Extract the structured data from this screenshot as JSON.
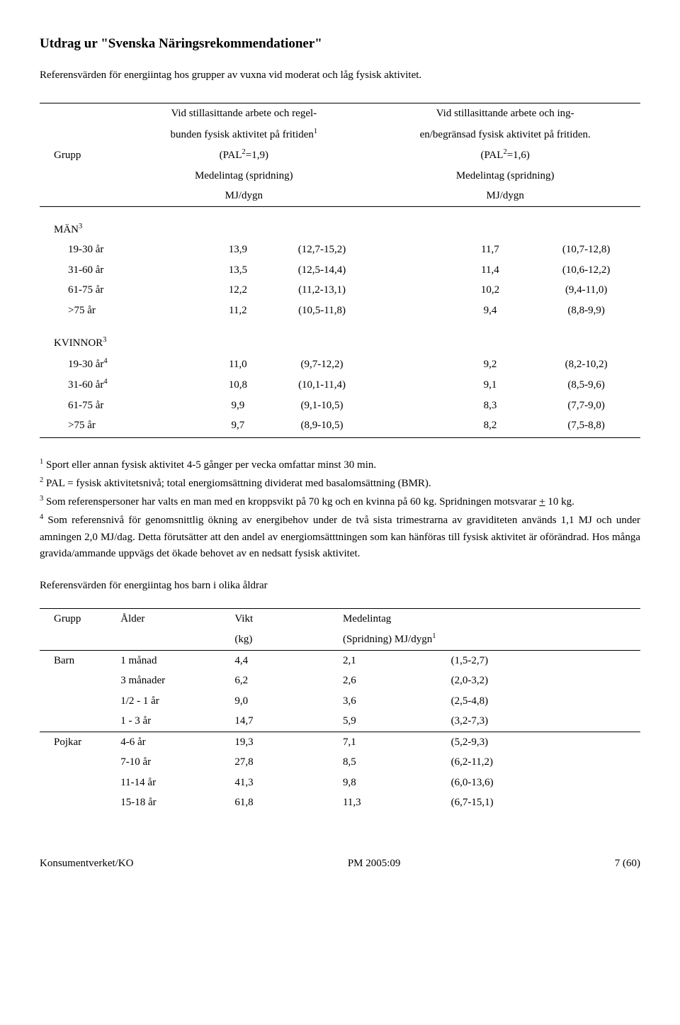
{
  "title": "Utdrag ur \"Svenska Näringsrekommendationer\"",
  "subtitle": "Referensvärden för energiintag hos grupper av vuxna vid moderat och låg fysisk aktivitet.",
  "table1": {
    "col0": "Grupp",
    "hdr1_l1": "Vid stillasittande arbete och regel-",
    "hdr1_l2": "bunden fysisk  aktivitet på fritiden",
    "hdr1_sup": "1",
    "hdr1_l3a": "(PAL",
    "hdr1_l3sup": "2",
    "hdr1_l3b": "=1,9)",
    "hdr1_l4": "Medelintag (spridning)",
    "hdr1_l5": "MJ/dygn",
    "hdr2_l1": "Vid stillasittande arbete och ing-",
    "hdr2_l2": "en/begränsad fysisk aktivitet på fritiden.",
    "hdr2_l3a": "(PAL",
    "hdr2_l3sup": "2",
    "hdr2_l3b": "=1,6)",
    "hdr2_l4": "Medelintag (spridning)",
    "hdr2_l5": "MJ/dygn",
    "men_label": "MÄN",
    "men_sup": "3",
    "men_rows": [
      {
        "age": "19-30 år",
        "v1": "13,9",
        "r1": "(12,7-15,2)",
        "v2": "11,7",
        "r2": "(10,7-12,8)"
      },
      {
        "age": "31-60 år",
        "v1": "13,5",
        "r1": "(12,5-14,4)",
        "v2": "11,4",
        "r2": "(10,6-12,2)"
      },
      {
        "age": "61-75 år",
        "v1": "12,2",
        "r1": "(11,2-13,1)",
        "v2": "10,2",
        "r2": "(9,4-11,0)"
      },
      {
        "age": ">75 år",
        "v1": "11,2",
        "r1": "(10,5-11,8)",
        "v2": "9,4",
        "r2": "(8,8-9,9)"
      }
    ],
    "women_label": "KVINNOR",
    "women_sup": "3",
    "women_rows": [
      {
        "age": "19-30 år",
        "asup": "4",
        "v1": "11,0",
        "r1": "(9,7-12,2)",
        "v2": "9,2",
        "r2": "(8,2-10,2)"
      },
      {
        "age": "31-60 år",
        "asup": "4",
        "v1": "10,8",
        "r1": "(10,1-11,4)",
        "v2": "9,1",
        "r2": "(8,5-9,6)"
      },
      {
        "age": "61-75 år",
        "asup": "",
        "v1": "9,9",
        "r1": "(9,1-10,5)",
        "v2": "8,3",
        "r2": "(7,7-9,0)"
      },
      {
        "age": ">75 år",
        "asup": "",
        "v1": "9,7",
        "r1": "(8,9-10,5)",
        "v2": "8,2",
        "r2": "(7,5-8,8)"
      }
    ]
  },
  "notes": {
    "n1sup": "1",
    "n1": " Sport eller annan fysisk aktivitet 4-5 gånger per vecka omfattar minst 30 min.",
    "n2sup": "2",
    "n2": " PAL = fysisk aktivitetsnivå; total energiomsättning dividerat med basalomsättning (BMR).",
    "n3sup": "3",
    "n3": " Som referenspersoner har valts en man med en kroppsvikt på 70 kg och en kvinna på 60 kg. Spridningen motsvarar ",
    "n3pm": "+",
    "n3b": " 10 kg.",
    "n4sup": "4",
    "n4": " Som referensnivå för genomsnittlig ökning av energibehov under de två sista trimestrarna av graviditeten används 1,1 MJ och under amningen 2,0 MJ/dag. Detta förutsätter att den andel av energiomsätttningen som kan hänföras till fysisk aktivitet är oförändrad. Hos många gravida/ammande uppvägs det ökade behovet av en nedsatt fysisk aktivitet."
  },
  "mid_heading": "Referensvärden för energiintag hos barn i olika åldrar",
  "table2": {
    "h_group": "Grupp",
    "h_age": "Ålder",
    "h_weight": "Vikt",
    "h_weight2": "(kg)",
    "h_intake": "Medelintag",
    "h_intake2a": "(Spridning) MJ/dygn",
    "h_intake2sup": "1",
    "barn": "Barn",
    "barn_rows": [
      {
        "age": "1 månad",
        "w": "4,4",
        "v": "2,1",
        "r": "(1,5-2,7)"
      },
      {
        "age": "3 månader",
        "w": "6,2",
        "v": "2,6",
        "r": "(2,0-3,2)"
      },
      {
        "age": "1/2 - 1 år",
        "w": "9,0",
        "v": "3,6",
        "r": "(2,5-4,8)"
      },
      {
        "age": "1 - 3 år",
        "w": "14,7",
        "v": "5,9",
        "r": "(3,2-7,3)"
      }
    ],
    "pojkar": "Pojkar",
    "pojkar_rows": [
      {
        "age": "4-6 år",
        "w": "19,3",
        "v": "7,1",
        "r": "(5,2-9,3)"
      },
      {
        "age": "7-10 år",
        "w": "27,8",
        "v": "8,5",
        "r": "(6,2-11,2)"
      },
      {
        "age": "11-14 år",
        "w": "41,3",
        "v": "9,8",
        "r": "(6,0-13,6)"
      },
      {
        "age": "15-18 år",
        "w": "61,8",
        "v": "11,3",
        "r": "(6,7-15,1)"
      }
    ]
  },
  "footer": {
    "left": "Konsumentverket/KO",
    "center": "PM 2005:09",
    "right": "7 (60)"
  }
}
